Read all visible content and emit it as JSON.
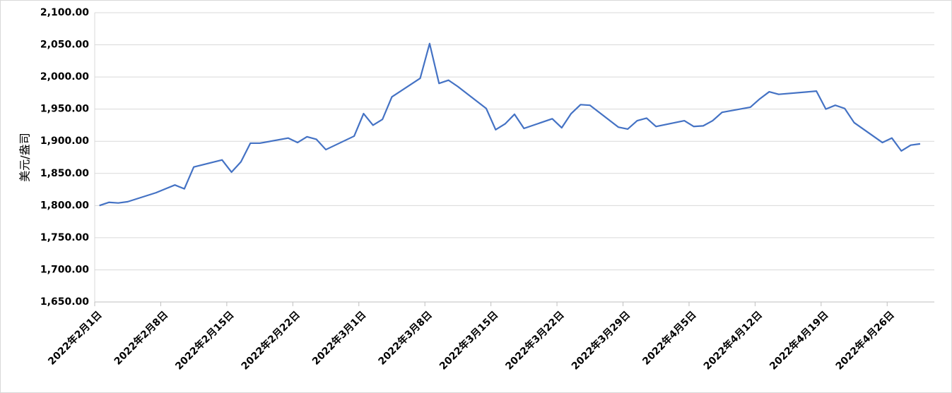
{
  "chart_data": {
    "type": "line",
    "y_label": "美元/盎司",
    "x": [
      "2022-02-01",
      "2022-02-02",
      "2022-02-03",
      "2022-02-04",
      "2022-02-07",
      "2022-02-08",
      "2022-02-09",
      "2022-02-10",
      "2022-02-11",
      "2022-02-14",
      "2022-02-15",
      "2022-02-16",
      "2022-02-17",
      "2022-02-18",
      "2022-02-21",
      "2022-02-22",
      "2022-02-23",
      "2022-02-24",
      "2022-02-25",
      "2022-02-28",
      "2022-03-01",
      "2022-03-02",
      "2022-03-03",
      "2022-03-04",
      "2022-03-07",
      "2022-03-08",
      "2022-03-09",
      "2022-03-10",
      "2022-03-11",
      "2022-03-14",
      "2022-03-15",
      "2022-03-16",
      "2022-03-17",
      "2022-03-18",
      "2022-03-21",
      "2022-03-22",
      "2022-03-23",
      "2022-03-24",
      "2022-03-25",
      "2022-03-28",
      "2022-03-29",
      "2022-03-30",
      "2022-03-31",
      "2022-04-01",
      "2022-04-04",
      "2022-04-05",
      "2022-04-06",
      "2022-04-07",
      "2022-04-08",
      "2022-04-11",
      "2022-04-12",
      "2022-04-13",
      "2022-04-14",
      "2022-04-18",
      "2022-04-19",
      "2022-04-20",
      "2022-04-21",
      "2022-04-22",
      "2022-04-25",
      "2022-04-26",
      "2022-04-27",
      "2022-04-28",
      "2022-04-29"
    ],
    "series": [
      {
        "color": "#4472c4",
        "values": [
          1800,
          1805,
          1804,
          1806,
          1820,
          1826,
          1832,
          1826,
          1860,
          1871,
          1852,
          1868,
          1897,
          1897,
          1905,
          1898,
          1907,
          1903,
          1887,
          1908,
          1943,
          1925,
          1934,
          1969,
          1998,
          2052,
          1990,
          1995,
          1985,
          1951,
          1918,
          1927,
          1942,
          1920,
          1935,
          1921,
          1943,
          1957,
          1956,
          1922,
          1919,
          1932,
          1936,
          1923,
          1932,
          1923,
          1924,
          1932,
          1945,
          1953,
          1966,
          1977,
          1973,
          1978,
          1950,
          1956,
          1951,
          1929,
          1898,
          1905,
          1885,
          1894,
          1896
        ]
      }
    ],
    "xlim": [
      "2022-02-01",
      "2022-04-30"
    ],
    "xticks": [
      {
        "value": "2022-02-01",
        "label": "2022年2月1日"
      },
      {
        "value": "2022-02-08",
        "label": "2022年2月8日"
      },
      {
        "value": "2022-02-15",
        "label": "2022年2月15日"
      },
      {
        "value": "2022-02-22",
        "label": "2022年2月22日"
      },
      {
        "value": "2022-03-01",
        "label": "2022年3月1日"
      },
      {
        "value": "2022-03-08",
        "label": "2022年3月8日"
      },
      {
        "value": "2022-03-15",
        "label": "2022年3月15日"
      },
      {
        "value": "2022-03-22",
        "label": "2022年3月22日"
      },
      {
        "value": "2022-03-29",
        "label": "2022年3月29日"
      },
      {
        "value": "2022-04-05",
        "label": "2022年4月5日"
      },
      {
        "value": "2022-04-12",
        "label": "2022年4月12日"
      },
      {
        "value": "2022-04-19",
        "label": "2022年4月19日"
      },
      {
        "value": "2022-04-26",
        "label": "2022年4月26日"
      }
    ],
    "ylim": [
      1650,
      2100
    ],
    "yticks": [
      {
        "value": 1650,
        "label": "1,650.00"
      },
      {
        "value": 1700,
        "label": "1,700.00"
      },
      {
        "value": 1750,
        "label": "1,750.00"
      },
      {
        "value": 1800,
        "label": "1,800.00"
      },
      {
        "value": 1850,
        "label": "1,850.00"
      },
      {
        "value": 1900,
        "label": "1,900.00"
      },
      {
        "value": 1950,
        "label": "1,950.00"
      },
      {
        "value": 2000,
        "label": "2,000.00"
      },
      {
        "value": 2050,
        "label": "2,050.00"
      },
      {
        "value": 2100,
        "label": "2,100.00"
      }
    ],
    "grid": true
  }
}
